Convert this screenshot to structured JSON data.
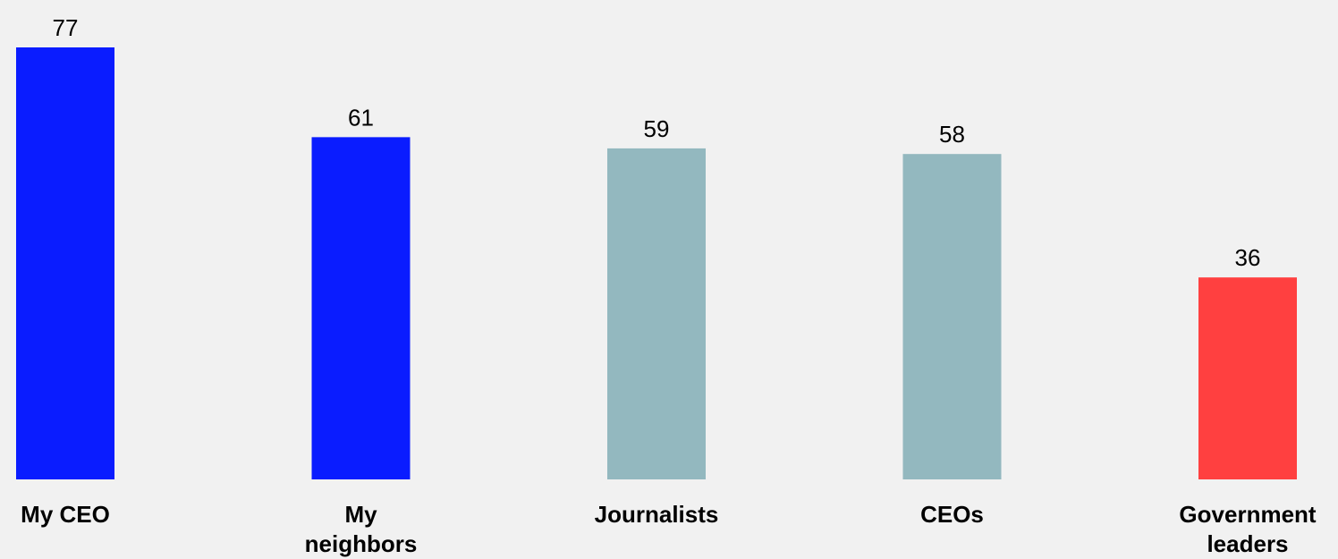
{
  "chart_data": {
    "type": "bar",
    "categories": [
      "My CEO",
      "My neighbors",
      "Journalists",
      "CEOs",
      "Government leaders"
    ],
    "category_lines": [
      [
        "My CEO"
      ],
      [
        "My",
        "neighbors"
      ],
      [
        "Journalists"
      ],
      [
        "CEOs"
      ],
      [
        "Government",
        "leaders"
      ]
    ],
    "values": [
      77,
      61,
      59,
      58,
      36
    ],
    "value_labels": [
      "77",
      "61",
      "59",
      "58",
      "36"
    ],
    "bar_colors": [
      "#0a1cff",
      "#0a1cff",
      "#93b8bf",
      "#93b8bf",
      "#ff4040"
    ],
    "title": "",
    "xlabel": "",
    "ylabel": "",
    "ylim": [
      0,
      77
    ],
    "grid": false,
    "legend": "none"
  }
}
